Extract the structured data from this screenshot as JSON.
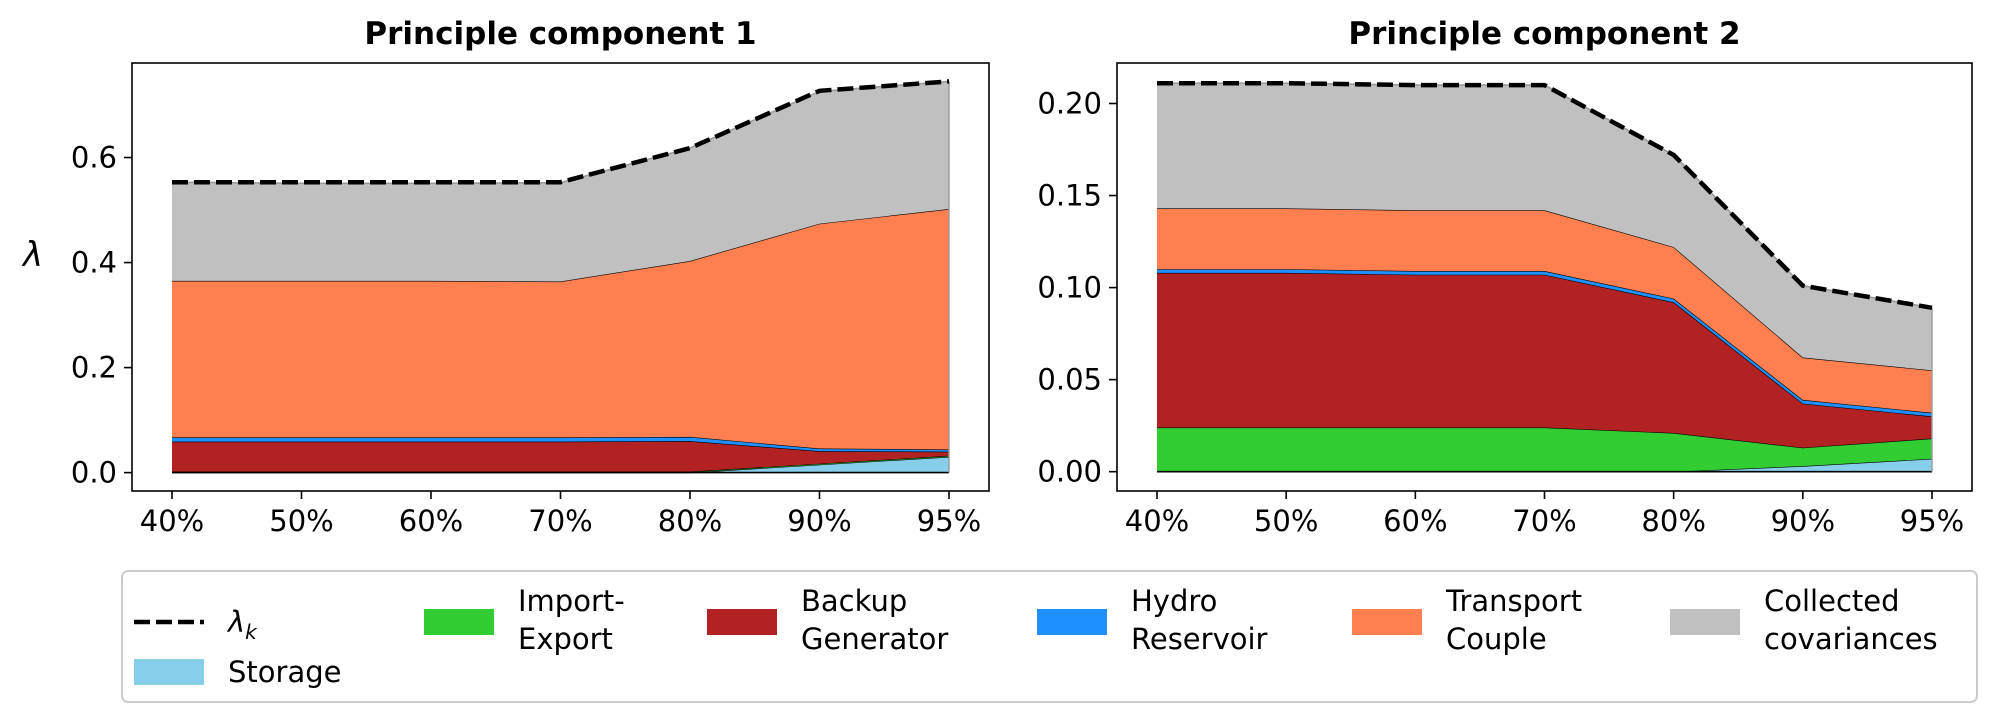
{
  "chart_data": [
    {
      "type": "area",
      "title": "Principle component 1",
      "ylabel": "λ",
      "categories": [
        "40%",
        "50%",
        "60%",
        "70%",
        "80%",
        "90%",
        "95%"
      ],
      "ylim": [
        -0.035,
        0.78
      ],
      "yticks": [
        0.0,
        0.2,
        0.4,
        0.6
      ],
      "ytick_labels": [
        "0.0",
        "0.2",
        "0.4",
        "0.6"
      ],
      "grid": false,
      "stacked": true,
      "series": [
        {
          "name": "Storage",
          "color": "#87CEEB",
          "values": [
            0.0,
            0.0,
            0.0,
            0.0,
            0.0,
            0.015,
            0.03
          ]
        },
        {
          "name": "Import-\nExport",
          "color": "#32CD32",
          "values": [
            0.002,
            0.002,
            0.002,
            0.002,
            0.002,
            0.002,
            0.002
          ]
        },
        {
          "name": "Backup\nGenerator",
          "color": "#B22222",
          "values": [
            0.057,
            0.057,
            0.057,
            0.057,
            0.058,
            0.024,
            0.008
          ]
        },
        {
          "name": "Hydro\nReservoir",
          "color": "#1E90FF",
          "values": [
            0.008,
            0.008,
            0.008,
            0.008,
            0.008,
            0.005,
            0.004
          ]
        },
        {
          "name": "Transport\nCouple",
          "color": "#FF7F50",
          "values": [
            0.298,
            0.298,
            0.298,
            0.297,
            0.335,
            0.428,
            0.458
          ]
        },
        {
          "name": "Collected\ncovariances",
          "color": "#C0C0C0",
          "values": [
            0.188,
            0.186,
            0.186,
            0.188,
            0.215,
            0.252,
            0.243
          ]
        }
      ],
      "lambda_k": {
        "name": "λ",
        "subscript": "k",
        "values": [
          0.553,
          0.553,
          0.553,
          0.553,
          0.618,
          0.727,
          0.745
        ]
      }
    },
    {
      "type": "area",
      "title": "Principle component 2",
      "ylabel": "",
      "categories": [
        "40%",
        "50%",
        "60%",
        "70%",
        "80%",
        "90%",
        "95%"
      ],
      "ylim": [
        -0.0105,
        0.222
      ],
      "yticks": [
        0.0,
        0.05,
        0.1,
        0.15,
        0.2
      ],
      "ytick_labels": [
        "0.00",
        "0.05",
        "0.10",
        "0.15",
        "0.20"
      ],
      "grid": false,
      "stacked": true,
      "series": [
        {
          "name": "Storage",
          "color": "#87CEEB",
          "values": [
            0.0,
            0.0,
            0.0,
            0.0,
            0.0,
            0.003,
            0.007
          ]
        },
        {
          "name": "Import-\nExport",
          "color": "#32CD32",
          "values": [
            0.024,
            0.024,
            0.024,
            0.024,
            0.021,
            0.01,
            0.011
          ]
        },
        {
          "name": "Backup\nGenerator",
          "color": "#B22222",
          "values": [
            0.084,
            0.084,
            0.083,
            0.083,
            0.071,
            0.024,
            0.012
          ]
        },
        {
          "name": "Hydro\nReservoir",
          "color": "#1E90FF",
          "values": [
            0.002,
            0.002,
            0.002,
            0.002,
            0.002,
            0.002,
            0.002
          ]
        },
        {
          "name": "Transport\nCouple",
          "color": "#FF7F50",
          "values": [
            0.033,
            0.033,
            0.033,
            0.033,
            0.028,
            0.023,
            0.023
          ]
        },
        {
          "name": "Collected\ncovariances",
          "color": "#C0C0C0",
          "values": [
            0.068,
            0.068,
            0.068,
            0.068,
            0.05,
            0.039,
            0.034
          ]
        }
      ],
      "lambda_k": {
        "name": "λ",
        "subscript": "k",
        "values": [
          0.211,
          0.211,
          0.21,
          0.21,
          0.172,
          0.101,
          0.089
        ]
      }
    }
  ],
  "legend": {
    "placement": "bottom",
    "items": [
      {
        "label": "λ",
        "subscript": "k",
        "kind": "dashed-line",
        "color": "#000000"
      },
      {
        "label": "Storage",
        "kind": "patch",
        "color": "#87CEEB"
      },
      {
        "label": "Import-\nExport",
        "kind": "patch",
        "color": "#32CD32"
      },
      {
        "label": "Backup\nGenerator",
        "kind": "patch",
        "color": "#B22222"
      },
      {
        "label": "Hydro\nReservoir",
        "kind": "patch",
        "color": "#1E90FF"
      },
      {
        "label": "Transport\nCouple",
        "kind": "patch",
        "color": "#FF7F50"
      },
      {
        "label": "Collected\ncovariances",
        "kind": "patch",
        "color": "#C0C0C0"
      }
    ]
  }
}
